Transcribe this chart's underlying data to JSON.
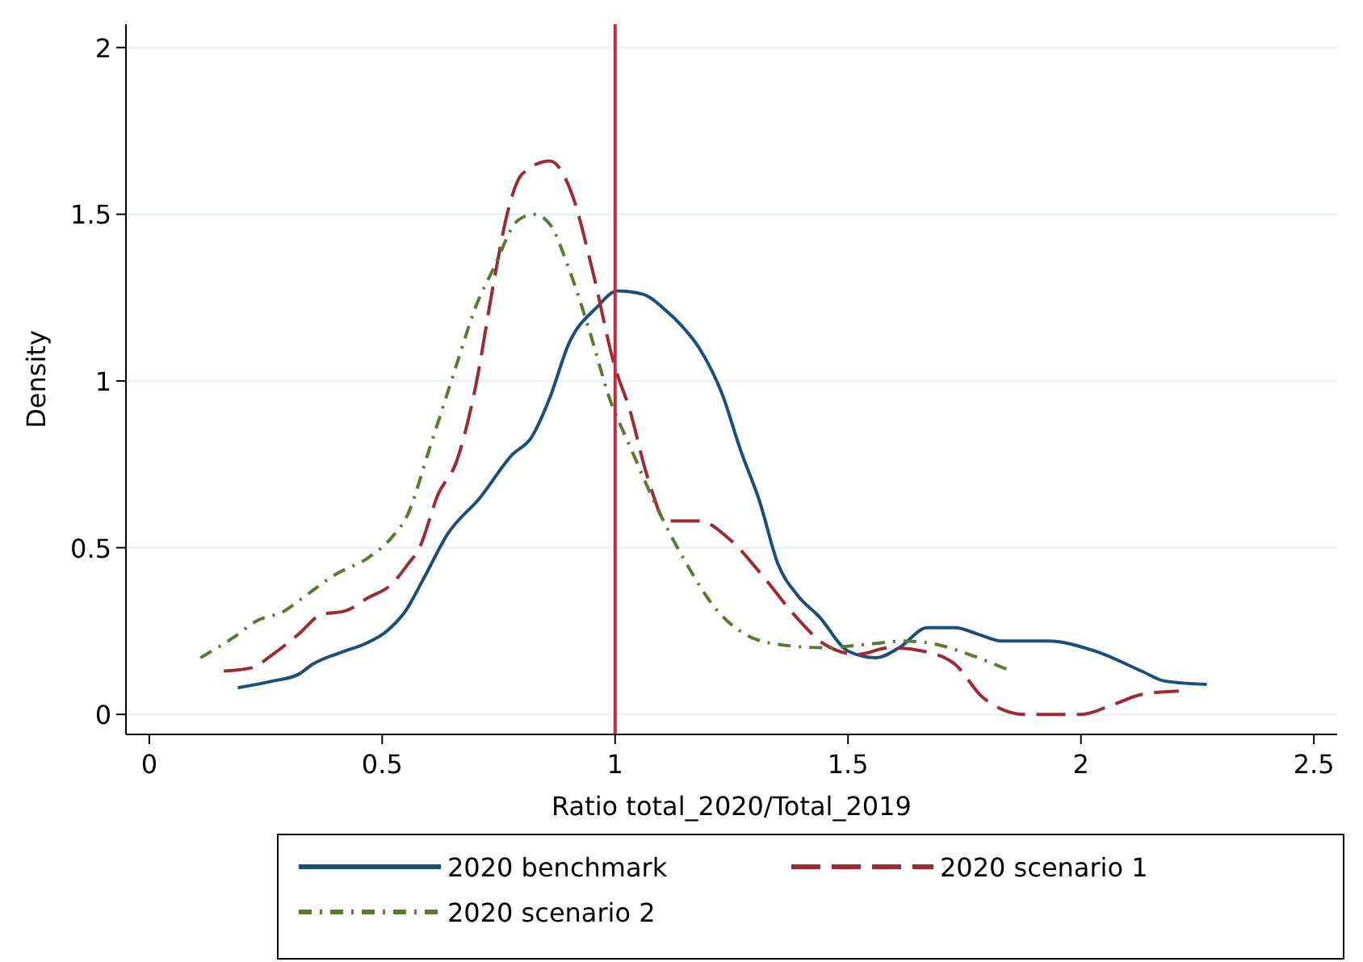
{
  "chart_data": {
    "type": "line",
    "xlabel": "Ratio total_2020/Total_2019",
    "ylabel": "Density",
    "xlim": [
      -0.05,
      2.55
    ],
    "ylim": [
      -0.06,
      2.07
    ],
    "xticks": [
      0,
      0.5,
      1,
      1.5,
      2,
      2.5
    ],
    "yticks": [
      0,
      0.5,
      1,
      1.5,
      2
    ],
    "grid": "y",
    "legend": "bottom",
    "marker": "none",
    "ref_lines": [
      {
        "axis": "x",
        "value": 1,
        "color": "#c8283c"
      }
    ],
    "series": [
      {
        "name": "2020 benchmark",
        "color": "#1a4f7a",
        "line_style": "solid",
        "x": [
          0.19,
          0.265,
          0.32,
          0.35,
          0.42,
          0.46,
          0.51,
          0.55,
          0.59,
          0.64,
          0.71,
          0.78,
          0.82,
          0.86,
          0.9,
          0.96,
          1.005,
          1.06,
          1.11,
          1.14,
          1.18,
          1.23,
          1.27,
          1.31,
          1.35,
          1.39,
          1.44,
          1.5,
          1.56,
          1.61,
          1.67,
          1.73,
          1.78,
          1.83,
          1.93,
          2.03,
          2.13,
          2.18,
          2.27
        ],
        "values": [
          0.08,
          0.1,
          0.12,
          0.15,
          0.19,
          0.21,
          0.25,
          0.31,
          0.41,
          0.54,
          0.65,
          0.78,
          0.83,
          0.95,
          1.11,
          1.22,
          1.27,
          1.26,
          1.21,
          1.17,
          1.1,
          0.96,
          0.79,
          0.64,
          0.45,
          0.36,
          0.29,
          0.19,
          0.17,
          0.2,
          0.26,
          0.26,
          0.24,
          0.22,
          0.22,
          0.19,
          0.13,
          0.1,
          0.09
        ]
      },
      {
        "name": "2020 scenario 1",
        "color": "#9e2a36",
        "line_style": "dashed",
        "x": [
          0.16,
          0.22,
          0.265,
          0.32,
          0.37,
          0.42,
          0.47,
          0.52,
          0.555,
          0.58,
          0.62,
          0.66,
          0.7,
          0.74,
          0.77,
          0.8,
          0.86,
          0.91,
          0.95,
          1.0,
          1.03,
          1.07,
          1.11,
          1.18,
          1.25,
          1.32,
          1.39,
          1.45,
          1.52,
          1.59,
          1.66,
          1.73,
          1.79,
          1.88,
          2.0,
          2.07,
          2.13,
          2.21
        ],
        "values": [
          0.13,
          0.14,
          0.18,
          0.24,
          0.3,
          0.31,
          0.35,
          0.39,
          0.45,
          0.5,
          0.66,
          0.76,
          0.98,
          1.3,
          1.51,
          1.62,
          1.66,
          1.55,
          1.34,
          1.04,
          0.92,
          0.71,
          0.58,
          0.58,
          0.52,
          0.41,
          0.29,
          0.21,
          0.18,
          0.2,
          0.19,
          0.15,
          0.05,
          0.0,
          0.0,
          0.03,
          0.06,
          0.07
        ]
      },
      {
        "name": "2020 scenario 2",
        "color": "#5a7a30",
        "line_style": "dashdot",
        "x": [
          0.11,
          0.18,
          0.23,
          0.29,
          0.33,
          0.4,
          0.47,
          0.52,
          0.555,
          0.6,
          0.66,
          0.7,
          0.74,
          0.79,
          0.825,
          0.86,
          0.9,
          0.945,
          0.99,
          1.03,
          1.09,
          1.15,
          1.22,
          1.28,
          1.35,
          1.45,
          1.54,
          1.62,
          1.69,
          1.76,
          1.85
        ],
        "values": [
          0.17,
          0.23,
          0.28,
          0.31,
          0.35,
          0.42,
          0.47,
          0.53,
          0.6,
          0.79,
          1.05,
          1.22,
          1.34,
          1.48,
          1.5,
          1.47,
          1.34,
          1.15,
          0.94,
          0.81,
          0.62,
          0.46,
          0.31,
          0.24,
          0.21,
          0.2,
          0.21,
          0.22,
          0.21,
          0.18,
          0.13
        ]
      }
    ]
  }
}
